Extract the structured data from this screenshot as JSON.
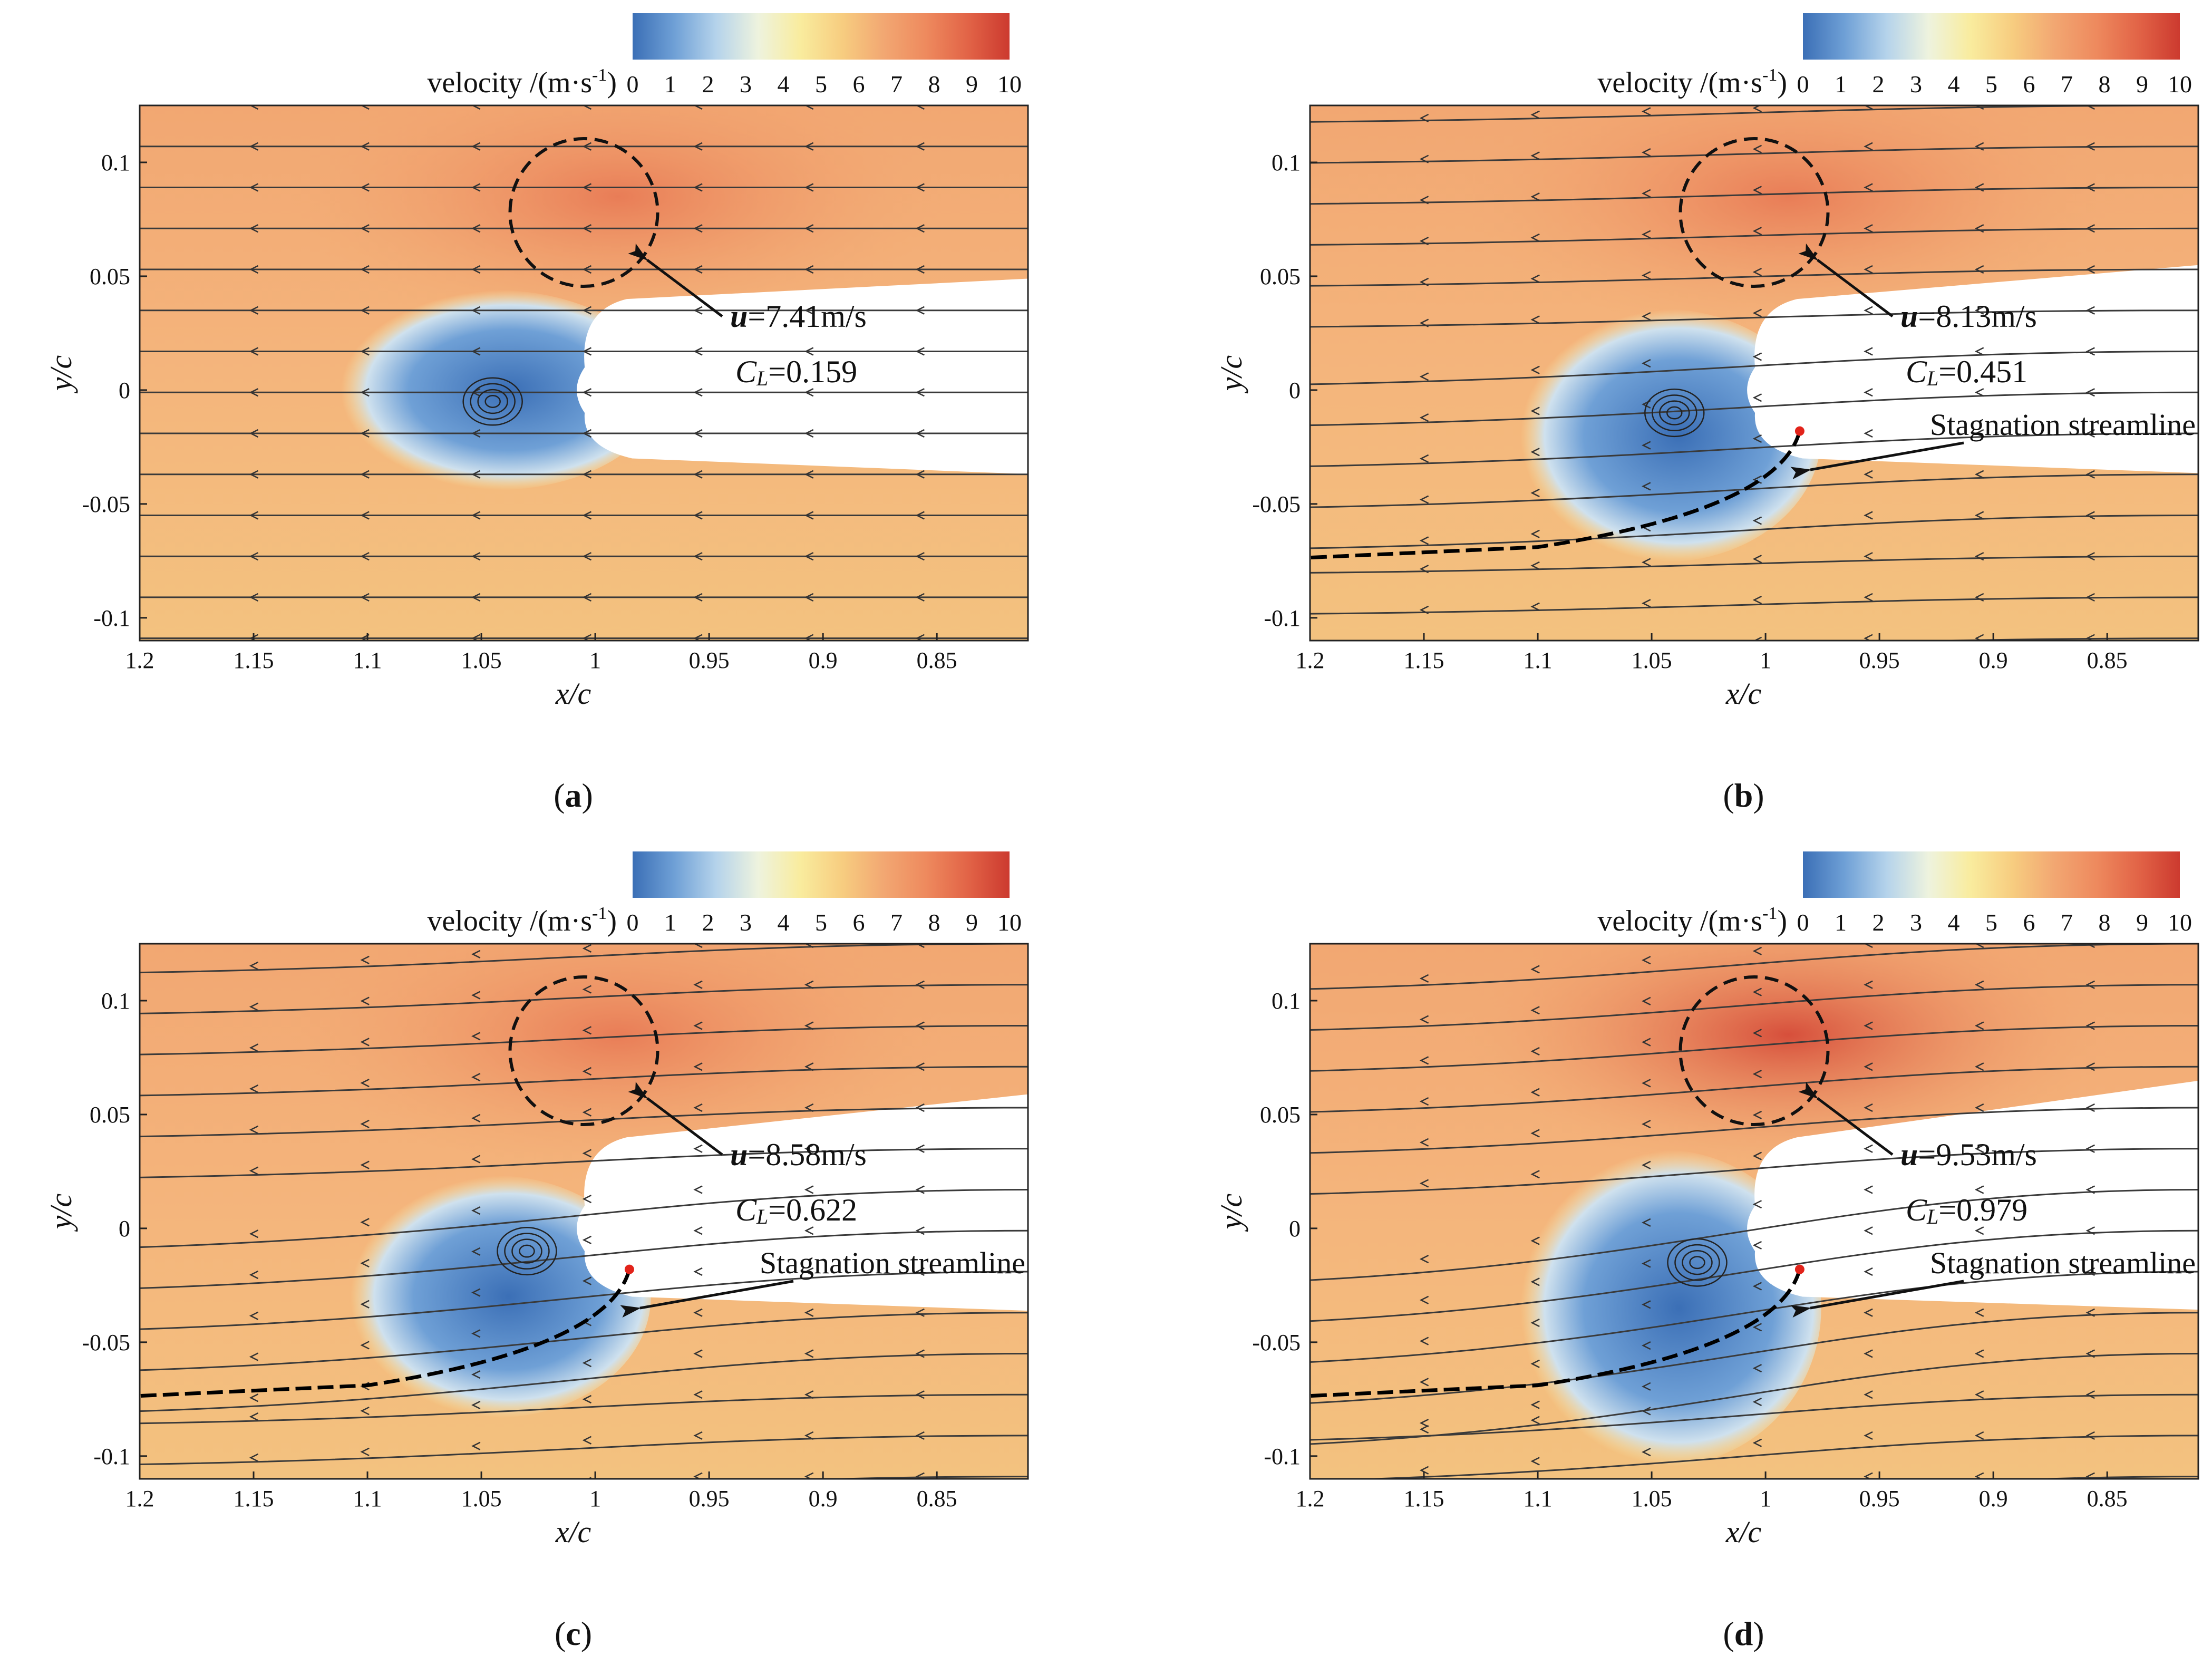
{
  "colorbar": {
    "label_main": "velocity /(m·s",
    "label_exp": "-1",
    "label_close": ")",
    "ticks": [
      "0",
      "1",
      "2",
      "3",
      "4",
      "5",
      "6",
      "7",
      "8",
      "9",
      "10"
    ],
    "colors": [
      "#3b6fb6",
      "#6fa0d6",
      "#b5d3eb",
      "#eef3de",
      "#f9ec9e",
      "#f7cd80",
      "#f2a772",
      "#ee8a5e",
      "#e26447",
      "#cc3a2f"
    ]
  },
  "axes": {
    "xlabel": "x/c",
    "ylabel": "y/c",
    "x_ticks": [
      "1.2",
      "1.15",
      "1.1",
      "1.05",
      "1",
      "0.95",
      "0.9",
      "0.85"
    ],
    "x_tick_values": [
      1.2,
      1.15,
      1.1,
      1.05,
      1.0,
      0.95,
      0.9,
      0.85
    ],
    "y_ticks": [
      "0.1",
      "0.05",
      "0",
      "-0.05",
      "-0.1"
    ],
    "y_tick_values": [
      0.1,
      0.05,
      0,
      -0.05,
      -0.1
    ],
    "x_range": [
      1.2,
      0.81
    ],
    "y_range": [
      -0.11,
      0.125
    ]
  },
  "panels": [
    {
      "id": "a",
      "letter": "a",
      "u_label": "u",
      "u_value": "=7.41m/s",
      "cl_label": "C",
      "cl_sub": "L",
      "cl_value": "=0.159",
      "stagnation": "",
      "flow_angle": 0,
      "slope": 0.35
    },
    {
      "id": "b",
      "letter": "b",
      "u_label": "u",
      "u_value": "=8.13m/s",
      "cl_label": "C",
      "cl_sub": "L",
      "cl_value": "=0.451",
      "stagnation": "Stagnation streamline",
      "flow_angle": 0.2,
      "slope": 0.5
    },
    {
      "id": "c",
      "letter": "c",
      "u_label": "u",
      "u_value": "=8.58m/s",
      "cl_label": "C",
      "cl_sub": "L",
      "cl_value": "=0.622",
      "stagnation": "Stagnation streamline",
      "flow_angle": 0.35,
      "slope": 0.6
    },
    {
      "id": "d",
      "letter": "d",
      "u_label": "u",
      "u_value": "=9.53m/s",
      "cl_label": "C",
      "cl_sub": "L",
      "cl_value": "=0.979",
      "stagnation": "Stagnation streamline",
      "flow_angle": 0.55,
      "slope": 0.75
    }
  ]
}
